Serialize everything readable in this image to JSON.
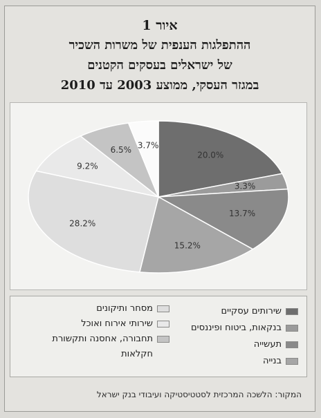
{
  "figure_label": "איור 1",
  "title_lines": [
    "ההתפלגות הענפית של משרות השכיר",
    "של ישראלים בעסקים הקטנים",
    "במגזר העסקי, ממוצע 2003 עד 2010"
  ],
  "source": "המקור: הלשכה המרכזית לסטטיסטיקה ועיבודי בנק ישראל",
  "chart_data": {
    "type": "pie",
    "title": "",
    "start_angle_deg": 0,
    "direction": "clockwise",
    "slices": [
      {
        "label": "שירותים עסקיים",
        "value": 20.0,
        "display": "20.0%",
        "color": "#6e6e6e"
      },
      {
        "label": "בנקאות, ביטוח ופיננסים",
        "value": 3.3,
        "display": "3.3%",
        "color": "#9b9b9b"
      },
      {
        "label": "תעשייה",
        "value": 13.7,
        "display": "13.7%",
        "color": "#8a8a8a"
      },
      {
        "label": "בנייה",
        "value": 15.2,
        "display": "15.2%",
        "color": "#a6a6a6"
      },
      {
        "label": "מסחר ותיקונים",
        "value": 28.2,
        "display": "28.2%",
        "color": "#dedede"
      },
      {
        "label": "שירותי אירוח ואוכל",
        "value": 9.2,
        "display": "9.2%",
        "color": "#e9e9e9"
      },
      {
        "label": "תחבורה, אחסנה ותקשורת",
        "value": 6.5,
        "display": "6.5%",
        "color": "#c4c4c4"
      },
      {
        "label": "חקלאות",
        "value": 3.7,
        "display": "3.7%",
        "color": "#fbfbfb"
      }
    ],
    "legend_position": "bottom"
  }
}
